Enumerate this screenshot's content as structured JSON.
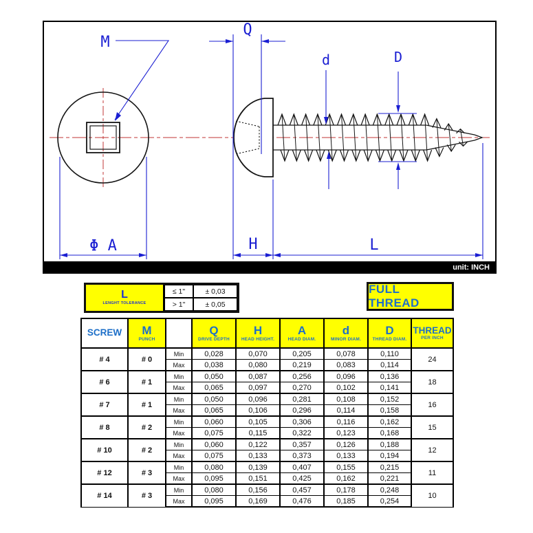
{
  "drawing": {
    "unit_label": "unit: INCH",
    "labels": {
      "drive": "M",
      "drive_depth": "Q",
      "minor_diam": "d",
      "thread_diam": "D",
      "head_diam": "Φ A",
      "head_height": "H",
      "length": "L"
    },
    "colors": {
      "dimension_blue": "#1a1ed2",
      "centerline_red": "#c23434",
      "outline_black": "#141414",
      "bar_black": "#000000"
    }
  },
  "tolerance_table": {
    "symbol": "L",
    "caption": "LENGHT TOLERANCE",
    "rows": [
      {
        "condition": "≤ 1\"",
        "value": "± 0,03"
      },
      {
        "condition": "> 1\"",
        "value": "± 0,05"
      }
    ]
  },
  "full_thread_label": "FULL THREAD",
  "spec_table": {
    "headers": {
      "screw": "SCREW",
      "punch": "M",
      "punch_sub": "PUNCH",
      "q": "Q",
      "q_sub": "DRIVE DEPTH",
      "h": "H",
      "h_sub": "HEAD HEIGHT.",
      "a": "A",
      "a_sub": "HEAD DIAM.",
      "d": "d",
      "d_sub": "MINOR DIAM.",
      "dd": "D",
      "dd_sub": "THREAD DIAM.",
      "thread": "THREAD",
      "thread_sub": "PER INCH"
    },
    "min_label": "Min",
    "max_label": "Max",
    "groups": [
      {
        "screw": "# 4",
        "punch": "# 0",
        "thread_per_inch": "24",
        "min": [
          "0,028",
          "0,070",
          "0,205",
          "0,078",
          "0,110"
        ],
        "max": [
          "0,038",
          "0,080",
          "0,219",
          "0,083",
          "0,114"
        ]
      },
      {
        "screw": "# 6",
        "punch": "# 1",
        "thread_per_inch": "18",
        "min": [
          "0,050",
          "0,087",
          "0,256",
          "0,096",
          "0,136"
        ],
        "max": [
          "0,065",
          "0,097",
          "0,270",
          "0,102",
          "0,141"
        ]
      },
      {
        "screw": "# 7",
        "punch": "# 1",
        "thread_per_inch": "16",
        "min": [
          "0,050",
          "0,096",
          "0,281",
          "0,108",
          "0,152"
        ],
        "max": [
          "0,065",
          "0,106",
          "0,296",
          "0,114",
          "0,158"
        ]
      },
      {
        "screw": "# 8",
        "punch": "# 2",
        "thread_per_inch": "15",
        "min": [
          "0,060",
          "0,105",
          "0,306",
          "0,116",
          "0,162"
        ],
        "max": [
          "0,075",
          "0,115",
          "0,322",
          "0,123",
          "0,168"
        ]
      },
      {
        "screw": "# 10",
        "punch": "# 2",
        "thread_per_inch": "12",
        "min": [
          "0,060",
          "0,122",
          "0,357",
          "0,126",
          "0,188"
        ],
        "max": [
          "0,075",
          "0,133",
          "0,373",
          "0,133",
          "0,194"
        ]
      },
      {
        "screw": "# 12",
        "punch": "# 3",
        "thread_per_inch": "11",
        "min": [
          "0,080",
          "0,139",
          "0,407",
          "0,155",
          "0,215"
        ],
        "max": [
          "0,095",
          "0,151",
          "0,425",
          "0,162",
          "0,221"
        ]
      },
      {
        "screw": "# 14",
        "punch": "# 3",
        "thread_per_inch": "10",
        "min": [
          "0,080",
          "0,156",
          "0,457",
          "0,178",
          "0,248"
        ],
        "max": [
          "0,095",
          "0,169",
          "0,476",
          "0,185",
          "0,254"
        ]
      }
    ]
  }
}
